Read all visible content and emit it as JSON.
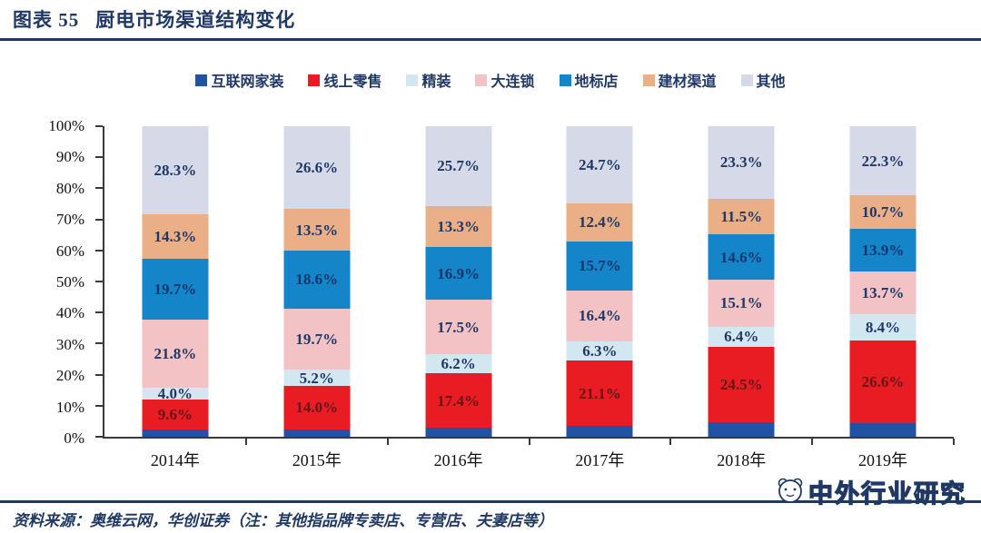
{
  "header": {
    "figure_label": "图表 55",
    "title": "厨电市场渠道结构变化"
  },
  "chart_data": {
    "type": "bar",
    "stacked": true,
    "unit": "%",
    "title": "厨电市场渠道结构变化",
    "categories": [
      "2014年",
      "2015年",
      "2016年",
      "2017年",
      "2018年",
      "2019年"
    ],
    "series": [
      {
        "name": "互联网家装",
        "color": "#2253a3",
        "label_color": "#1f3864",
        "show_labels": false,
        "values": [
          2.3,
          2.4,
          3.0,
          3.4,
          4.6,
          4.4
        ]
      },
      {
        "name": "线上零售",
        "color": "#ea1c23",
        "label_color": "#641617",
        "show_labels": true,
        "values": [
          9.6,
          14.0,
          17.4,
          21.1,
          24.5,
          26.6
        ]
      },
      {
        "name": "精装",
        "color": "#d3e7f0",
        "label_color": "#1f3864",
        "show_labels": true,
        "values": [
          4.0,
          5.2,
          6.2,
          6.3,
          6.4,
          8.4
        ]
      },
      {
        "name": "大连锁",
        "color": "#f3c2c4",
        "label_color": "#1f3864",
        "show_labels": true,
        "values": [
          21.8,
          19.7,
          17.5,
          16.4,
          15.1,
          13.7
        ]
      },
      {
        "name": "地标店",
        "color": "#1485c8",
        "label_color": "#12356b",
        "show_labels": true,
        "values": [
          19.7,
          18.6,
          16.9,
          15.7,
          14.6,
          13.9
        ]
      },
      {
        "name": "建材渠道",
        "color": "#eaaf87",
        "label_color": "#1f3864",
        "show_labels": true,
        "values": [
          14.3,
          13.5,
          13.3,
          12.4,
          11.5,
          10.7
        ]
      },
      {
        "name": "其他",
        "color": "#d6d9e8",
        "label_color": "#1f3864",
        "show_labels": true,
        "values": [
          28.3,
          26.6,
          25.7,
          24.7,
          23.3,
          22.3
        ]
      }
    ],
    "yticks": [
      "0%",
      "10%",
      "20%",
      "30%",
      "40%",
      "50%",
      "60%",
      "70%",
      "80%",
      "90%",
      "100%"
    ],
    "ylim": [
      0,
      100
    ],
    "grid": false,
    "legend_position": "top"
  },
  "footer": {
    "source": "资料来源：奥维云网，华创证券（注：其他指品牌专卖店、专营店、夫妻店等）",
    "watermark": "中外行业研究"
  },
  "colors": {
    "accent_navy": "#1f3864",
    "axis": "#3a3a3a"
  }
}
